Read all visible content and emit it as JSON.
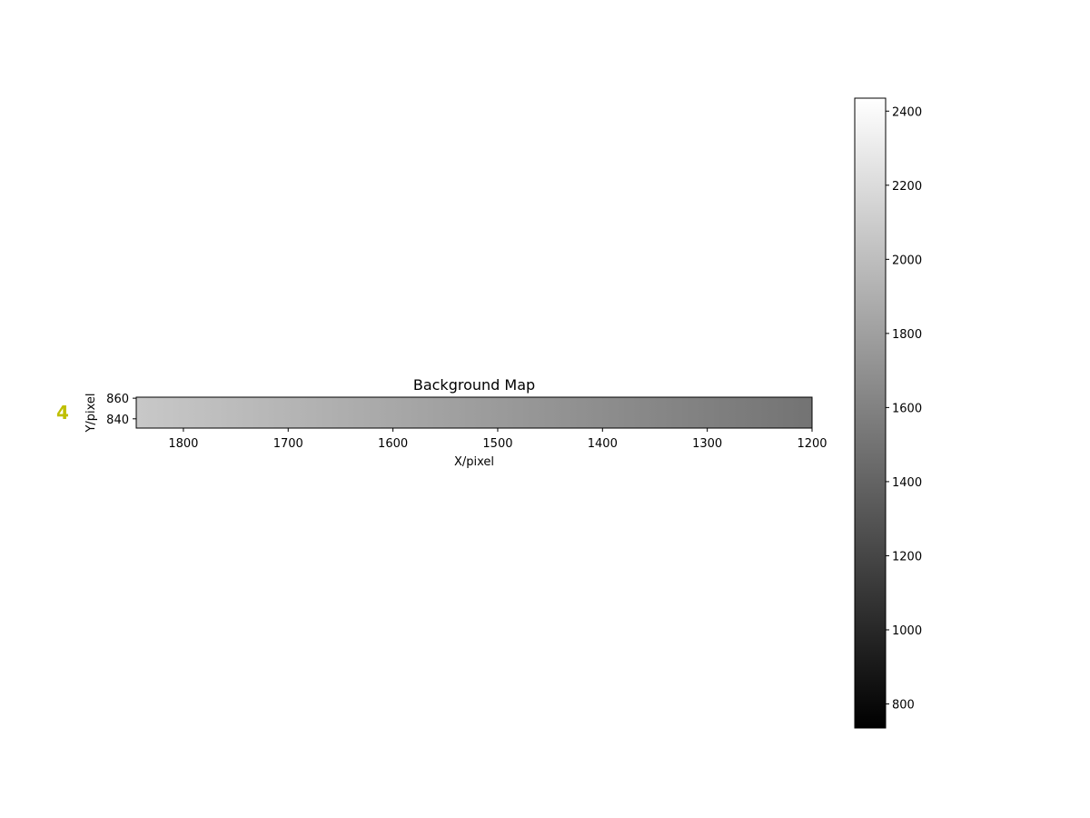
{
  "panel_label": "4",
  "colors": {
    "panel_label": "#bfbf00",
    "colormap": "gray",
    "map_high": "#c8c8c8",
    "map_low": "#737373"
  },
  "chart_data": {
    "type": "heatmap",
    "title": "Background Map",
    "xlabel": "X/pixel",
    "ylabel": "Y/pixel",
    "xlim": [
      1845,
      1200
    ],
    "ylim": [
      831,
      861
    ],
    "x_ticks": [
      1800,
      1700,
      1600,
      1500,
      1400,
      1300,
      1200
    ],
    "y_ticks": [
      840,
      860
    ],
    "gradient": {
      "value_at_x_start": 2040,
      "value_at_x_end": 1600,
      "direction": "decreasing toward x=1200"
    },
    "colorbar": {
      "range": [
        735,
        2435
      ],
      "ticks": [
        800,
        1000,
        1200,
        1400,
        1600,
        1800,
        2000,
        2200,
        2400
      ]
    }
  }
}
